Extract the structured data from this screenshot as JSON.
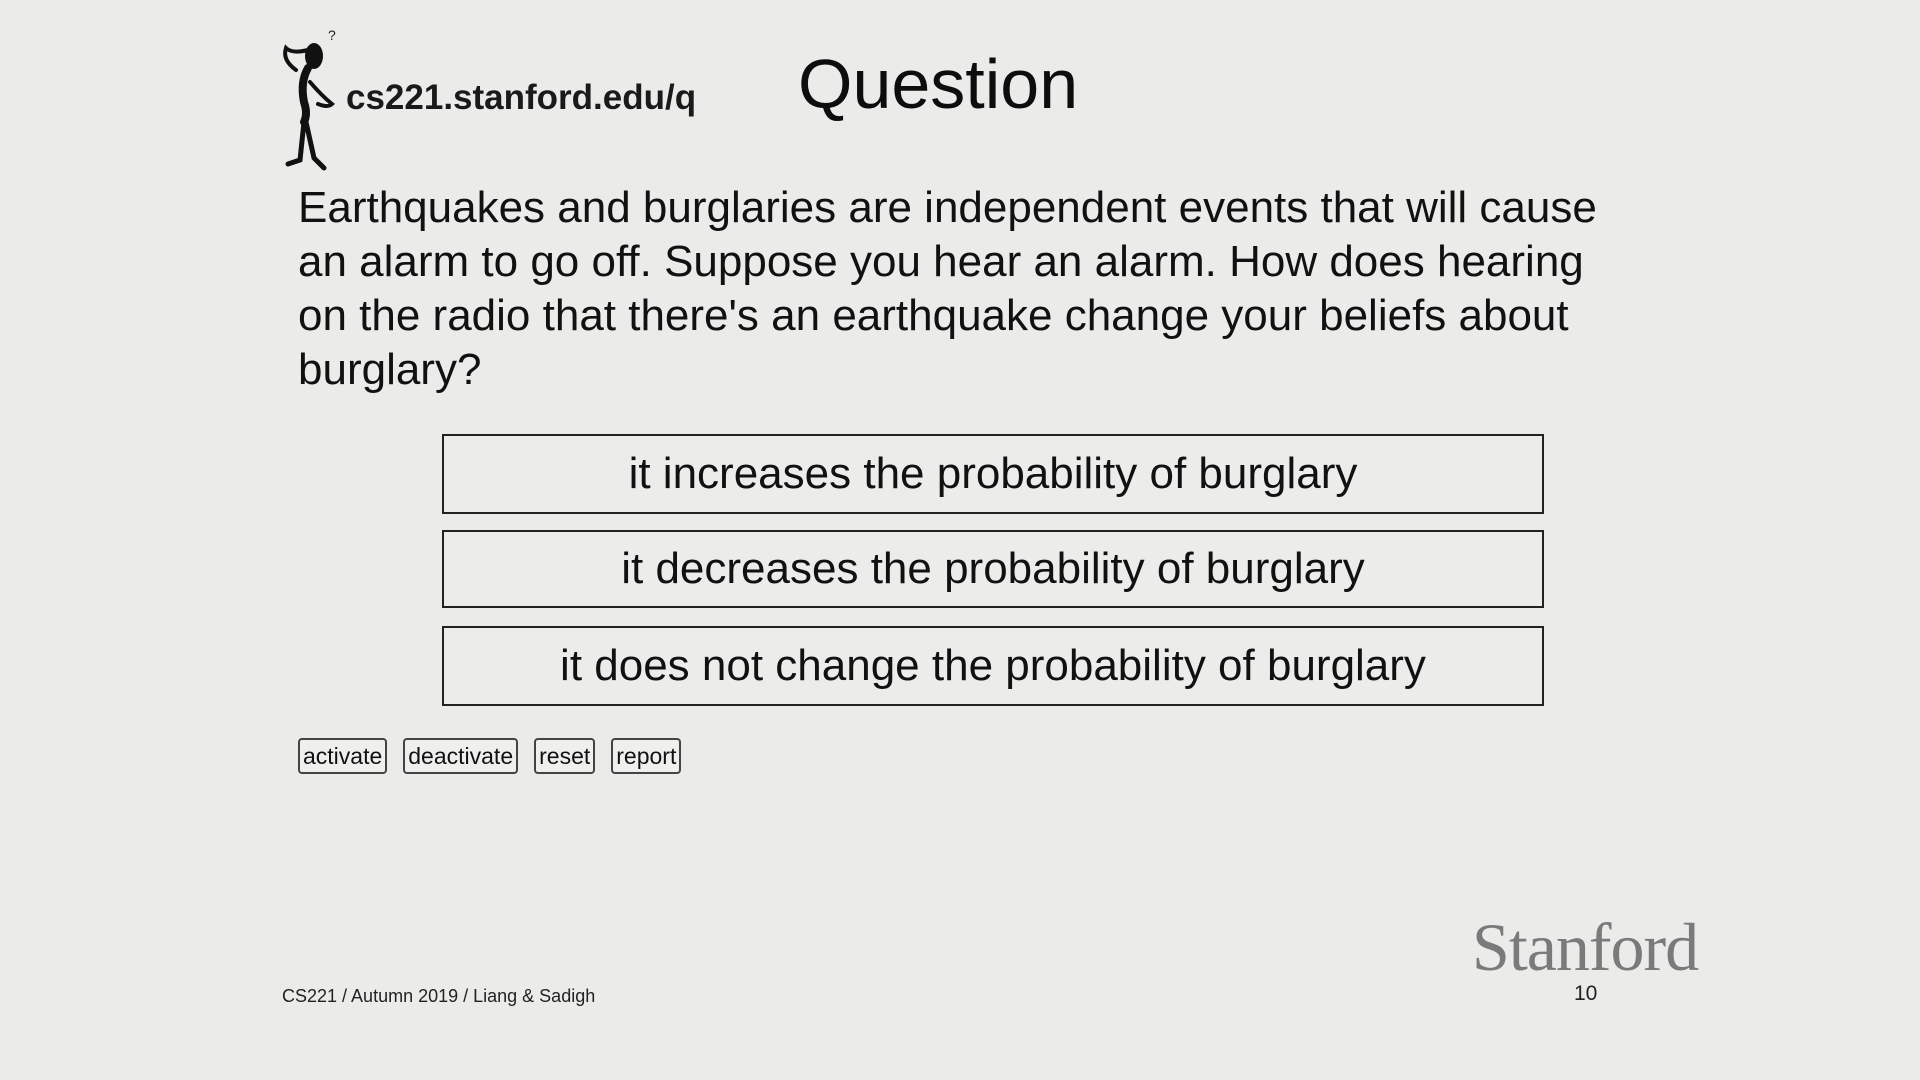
{
  "header": {
    "url": "cs221.stanford.edu/q",
    "title": "Question"
  },
  "question_text": "Earthquakes and burglaries are independent events that will cause an alarm to go off. Suppose you hear an alarm. How does hearing on the radio that there's an earthquake change your beliefs about burglary?",
  "options": [
    "it increases the probability of burglary",
    "it decreases the probability of burglary",
    "it does not change the probability of burglary"
  ],
  "controls": {
    "activate": "activate",
    "deactivate": "deactivate",
    "reset": "reset",
    "report": "report"
  },
  "footer": {
    "course": "CS221 / Autumn 2019 / Liang & Sadigh",
    "logo": "Stanford",
    "page_number": "10"
  },
  "icons": {
    "figure": "thinking-person-icon"
  }
}
